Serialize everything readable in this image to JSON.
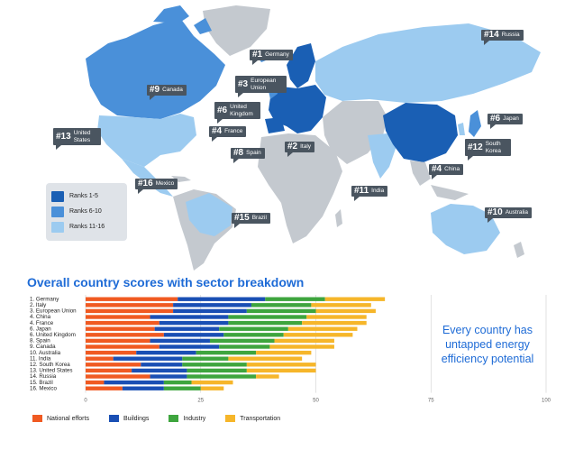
{
  "map": {
    "legend": [
      {
        "label": "Ranks 1-5",
        "color": "#1a5fb4"
      },
      {
        "label": "Ranks 6-10",
        "color": "#4a90d9"
      },
      {
        "label": "Ranks 11-16",
        "color": "#9ccbf0"
      }
    ],
    "callouts": [
      {
        "rank": "#1",
        "name": "Germany"
      },
      {
        "rank": "#3",
        "name": "European Union"
      },
      {
        "rank": "#6",
        "name": "United Kingdom"
      },
      {
        "rank": "#4",
        "name": "France"
      },
      {
        "rank": "#8",
        "name": "Spain"
      },
      {
        "rank": "#2",
        "name": "Italy"
      },
      {
        "rank": "#9",
        "name": "Canada"
      },
      {
        "rank": "#13",
        "name": "United States"
      },
      {
        "rank": "#16",
        "name": "Mexico"
      },
      {
        "rank": "#15",
        "name": "Brazil"
      },
      {
        "rank": "#14",
        "name": "Russia"
      },
      {
        "rank": "#6",
        "name": "Japan"
      },
      {
        "rank": "#12",
        "name": "South Korea"
      },
      {
        "rank": "#4",
        "name": "China"
      },
      {
        "rank": "#11",
        "name": "India"
      },
      {
        "rank": "#10",
        "name": "Australia"
      }
    ]
  },
  "chart_data": {
    "type": "bar",
    "orientation": "horizontal",
    "stacked": true,
    "title": "Overall country scores with sector breakdown",
    "categories": [
      "1. Germany",
      "2. Italy",
      "3. European Union",
      "4. China",
      "4. France",
      "6. Japan",
      "6. United Kingdom",
      "8. Spain",
      "9. Canada",
      "10. Australia",
      "11. India",
      "12. South Korea",
      "13. United States",
      "14. Russia",
      "15. Brazil",
      "16. Mexico"
    ],
    "series": [
      {
        "name": "National efforts",
        "color": "#f05a22",
        "values": [
          20,
          19,
          19,
          14,
          16,
          15,
          17,
          14,
          16,
          11,
          6,
          12,
          10,
          14,
          4,
          8
        ]
      },
      {
        "name": "Buildings",
        "color": "#1a4fb4",
        "values": [
          19,
          17,
          16,
          17,
          15,
          14,
          13,
          13,
          13,
          13,
          15,
          9,
          12,
          8,
          13,
          9
        ]
      },
      {
        "name": "Industry",
        "color": "#3ea53e",
        "values": [
          13,
          13,
          15,
          17,
          16,
          15,
          13,
          14,
          11,
          13,
          10,
          14,
          13,
          15,
          6,
          8
        ]
      },
      {
        "name": "Transportation",
        "color": "#f6b62a",
        "values": [
          13,
          13,
          13,
          13,
          14,
          15,
          15,
          13,
          14,
          12,
          16,
          15,
          15,
          5,
          9,
          5
        ]
      }
    ],
    "xlim": [
      0,
      100
    ],
    "xticks": [
      "0",
      "25",
      "50",
      "75",
      "100"
    ]
  },
  "tagline": "Every country has untapped energy efficiency potential"
}
